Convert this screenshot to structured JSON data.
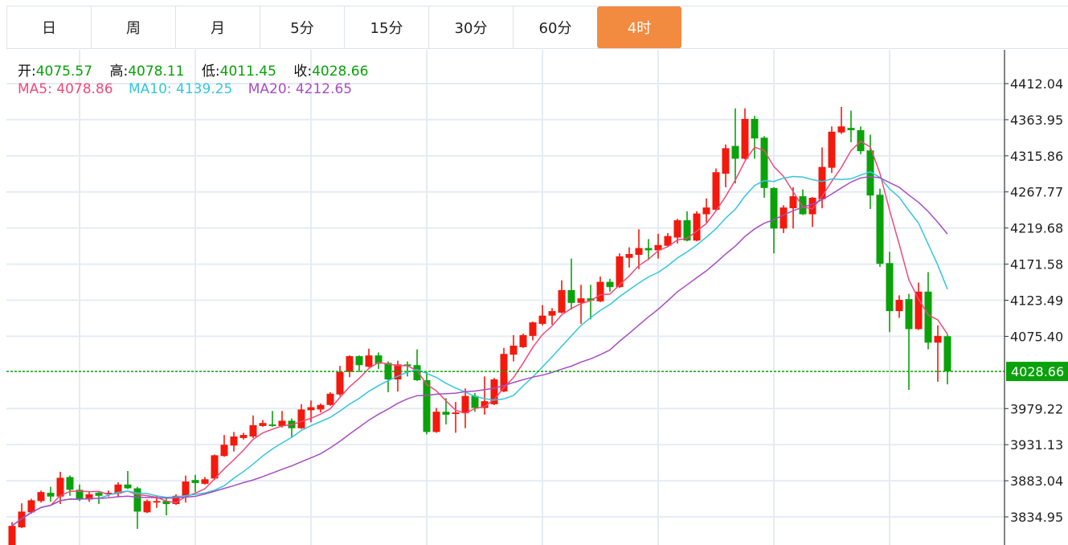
{
  "tabs": [
    {
      "label": "日",
      "active": false
    },
    {
      "label": "周",
      "active": false
    },
    {
      "label": "月",
      "active": false
    },
    {
      "label": "5分",
      "active": false
    },
    {
      "label": "15分",
      "active": false
    },
    {
      "label": "30分",
      "active": false
    },
    {
      "label": "60分",
      "active": false
    },
    {
      "label": "4时",
      "active": true
    }
  ],
  "ohlc_info": {
    "open_label": "开:",
    "open": "4075.57",
    "high_label": "高:",
    "high": "4078.11",
    "low_label": "低:",
    "low": "4011.45",
    "close_label": "收:",
    "close": "4028.66"
  },
  "ma_info": {
    "ma5_label": "MA5:",
    "ma5": "4078.86",
    "ma10_label": "MA10:",
    "ma10": "4139.25",
    "ma20_label": "MA20:",
    "ma20": "4212.65"
  },
  "colors": {
    "up": "#f3190c",
    "down": "#0aa20a",
    "ma5": "#ee4a7a",
    "ma10": "#33c6da",
    "ma20": "#a64dc2",
    "active_tab": "#f28b40"
  },
  "chart_data": {
    "type": "candlestick",
    "title": "",
    "ylim": [
      3786.9,
      4443.6
    ],
    "yticks": [
      "4412.04",
      "4363.95",
      "4315.86",
      "4267.77",
      "4219.68",
      "4171.58",
      "4123.49",
      "4075.40",
      "3979.22",
      "3931.13",
      "3883.04",
      "3834.95"
    ],
    "current_price": "4028.66",
    "grid": true,
    "ma_periods": [
      5,
      10,
      20
    ],
    "candles": [
      [
        3790,
        3828,
        3785,
        3823
      ],
      [
        3821,
        3853,
        3820,
        3842
      ],
      [
        3841,
        3859,
        3839,
        3857
      ],
      [
        3856,
        3870,
        3854,
        3868
      ],
      [
        3867,
        3875,
        3855,
        3862
      ],
      [
        3862,
        3895,
        3852,
        3887
      ],
      [
        3888,
        3890,
        3863,
        3871
      ],
      [
        3871,
        3878,
        3856,
        3858
      ],
      [
        3858,
        3868,
        3855,
        3865
      ],
      [
        3867,
        3869,
        3852,
        3863
      ],
      [
        3865,
        3870,
        3862,
        3867
      ],
      [
        3866,
        3881,
        3862,
        3878
      ],
      [
        3878,
        3896,
        3872,
        3873
      ],
      [
        3873,
        3875,
        3819,
        3842
      ],
      [
        3841,
        3858,
        3840,
        3856
      ],
      [
        3854,
        3863,
        3847,
        3856
      ],
      [
        3856,
        3860,
        3837,
        3852
      ],
      [
        3852,
        3865,
        3851,
        3863
      ],
      [
        3863,
        3890,
        3854,
        3882
      ],
      [
        3884,
        3891,
        3868,
        3880
      ],
      [
        3879,
        3888,
        3878,
        3885
      ],
      [
        3886,
        3918,
        3884,
        3917
      ],
      [
        3916,
        3944,
        3915,
        3931
      ],
      [
        3930,
        3948,
        3922,
        3942
      ],
      [
        3940,
        3947,
        3938,
        3944
      ],
      [
        3942,
        3970,
        3940,
        3957
      ],
      [
        3956,
        3964,
        3955,
        3960
      ],
      [
        3958,
        3976,
        3955,
        3956
      ],
      [
        3956,
        3976,
        3954,
        3963
      ],
      [
        3963,
        3966,
        3941,
        3953
      ],
      [
        3953,
        3985,
        3952,
        3978
      ],
      [
        3977,
        3990,
        3961,
        3981
      ],
      [
        3978,
        3986,
        3974,
        3984
      ],
      [
        3984,
        4001,
        3983,
        3999
      ],
      [
        3998,
        4036,
        3996,
        4028
      ],
      [
        4028,
        4050,
        4021,
        4049
      ],
      [
        4049,
        4050,
        4028,
        4037
      ],
      [
        4035,
        4059,
        4034,
        4050
      ],
      [
        4050,
        4054,
        4032,
        4039
      ],
      [
        4040,
        4042,
        4001,
        4018
      ],
      [
        4018,
        4043,
        4002,
        4038
      ],
      [
        4038,
        4042,
        4022,
        4036
      ],
      [
        4037,
        4058,
        4016,
        4017
      ],
      [
        4017,
        4028,
        3945,
        3948
      ],
      [
        3948,
        3980,
        3947,
        3975
      ],
      [
        3975,
        3993,
        3958,
        3971
      ],
      [
        3972,
        3988,
        3947,
        3974
      ],
      [
        3973,
        4006,
        3953,
        3996
      ],
      [
        3996,
        4000,
        3975,
        3980
      ],
      [
        3980,
        4022,
        3971,
        3989
      ],
      [
        3985,
        4020,
        3984,
        4018
      ],
      [
        4002,
        4060,
        4001,
        4052
      ],
      [
        4051,
        4077,
        4042,
        4063
      ],
      [
        4061,
        4079,
        4060,
        4077
      ],
      [
        4076,
        4095,
        4070,
        4094
      ],
      [
        4092,
        4117,
        4090,
        4103
      ],
      [
        4103,
        4113,
        4091,
        4109
      ],
      [
        4107,
        4150,
        4106,
        4137
      ],
      [
        4137,
        4179,
        4111,
        4120
      ],
      [
        4120,
        4144,
        4092,
        4126
      ],
      [
        4126,
        4144,
        4098,
        4123
      ],
      [
        4122,
        4155,
        4121,
        4148
      ],
      [
        4148,
        4152,
        4135,
        4141
      ],
      [
        4141,
        4186,
        4140,
        4182
      ],
      [
        4180,
        4194,
        4167,
        4185
      ],
      [
        4184,
        4218,
        4165,
        4193
      ],
      [
        4193,
        4205,
        4177,
        4190
      ],
      [
        4190,
        4212,
        4179,
        4197
      ],
      [
        4196,
        4213,
        4195,
        4209
      ],
      [
        4207,
        4232,
        4199,
        4230
      ],
      [
        4230,
        4242,
        4202,
        4203
      ],
      [
        4203,
        4242,
        4202,
        4239
      ],
      [
        4238,
        4259,
        4227,
        4247
      ],
      [
        4244,
        4299,
        4243,
        4294
      ],
      [
        4292,
        4331,
        4274,
        4326
      ],
      [
        4329,
        4379,
        4279,
        4312
      ],
      [
        4312,
        4379,
        4311,
        4365
      ],
      [
        4365,
        4369,
        4312,
        4339
      ],
      [
        4340,
        4342,
        4260,
        4273
      ],
      [
        4273,
        4274,
        4186,
        4219
      ],
      [
        4219,
        4250,
        4213,
        4247
      ],
      [
        4246,
        4274,
        4219,
        4262
      ],
      [
        4262,
        4271,
        4237,
        4238
      ],
      [
        4238,
        4261,
        4221,
        4260
      ],
      [
        4258,
        4327,
        4246,
        4301
      ],
      [
        4300,
        4355,
        4293,
        4348
      ],
      [
        4347,
        4381,
        4345,
        4355
      ],
      [
        4353,
        4376,
        4334,
        4350
      ],
      [
        4350,
        4355,
        4318,
        4322
      ],
      [
        4323,
        4344,
        4245,
        4263
      ],
      [
        4264,
        4272,
        4168,
        4172
      ],
      [
        4173,
        4188,
        4081,
        4109
      ],
      [
        4109,
        4130,
        4100,
        4124
      ],
      [
        4125,
        4132,
        4004,
        4085
      ],
      [
        4085,
        4147,
        4084,
        4135
      ],
      [
        4135,
        4161,
        4058,
        4067
      ],
      [
        4067,
        4090,
        4015,
        4076
      ],
      [
        4075.57,
        4078.11,
        4011.45,
        4028.66
      ]
    ]
  }
}
